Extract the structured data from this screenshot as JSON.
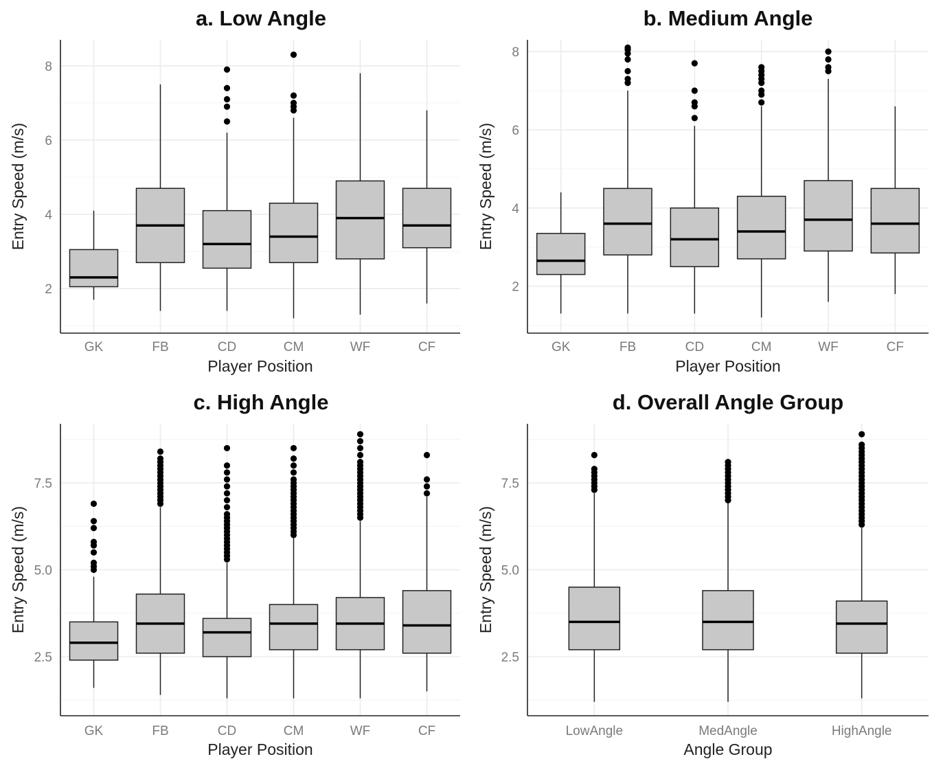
{
  "chart_data": [
    {
      "type": "boxplot",
      "title": "a. Low Angle",
      "xlabel": "Player Position",
      "ylabel": "Entry Speed (m/s)",
      "ylim": [
        0.8,
        8.7
      ],
      "yticks": [
        2,
        4,
        6,
        8
      ],
      "ytick_labels": [
        "2",
        "4",
        "6",
        "8"
      ],
      "categories": [
        "GK",
        "FB",
        "CD",
        "CM",
        "WF",
        "CF"
      ],
      "boxes": [
        {
          "min": 1.7,
          "q1": 2.05,
          "median": 2.3,
          "q3": 3.05,
          "max": 4.1,
          "outliers": []
        },
        {
          "min": 1.4,
          "q1": 2.7,
          "median": 3.7,
          "q3": 4.7,
          "max": 7.5,
          "outliers": []
        },
        {
          "min": 1.4,
          "q1": 2.55,
          "median": 3.2,
          "q3": 4.1,
          "max": 6.2,
          "outliers": [
            6.5,
            6.9,
            7.1,
            7.4,
            7.9
          ]
        },
        {
          "min": 1.2,
          "q1": 2.7,
          "median": 3.4,
          "q3": 4.3,
          "max": 6.6,
          "outliers": [
            6.8,
            6.9,
            7.0,
            7.2,
            8.3
          ]
        },
        {
          "min": 1.3,
          "q1": 2.8,
          "median": 3.9,
          "q3": 4.9,
          "max": 7.8,
          "outliers": []
        },
        {
          "min": 1.6,
          "q1": 3.1,
          "median": 3.7,
          "q3": 4.7,
          "max": 6.8,
          "outliers": []
        }
      ]
    },
    {
      "type": "boxplot",
      "title": "b. Medium Angle",
      "xlabel": "Player Position",
      "ylabel": "Entry Speed (m/s)",
      "ylim": [
        0.8,
        8.3
      ],
      "yticks": [
        2,
        4,
        6,
        8
      ],
      "ytick_labels": [
        "2",
        "4",
        "6",
        "8"
      ],
      "categories": [
        "GK",
        "FB",
        "CD",
        "CM",
        "WF",
        "CF"
      ],
      "boxes": [
        {
          "min": 1.3,
          "q1": 2.3,
          "median": 2.65,
          "q3": 3.35,
          "max": 4.4,
          "outliers": []
        },
        {
          "min": 1.3,
          "q1": 2.8,
          "median": 3.6,
          "q3": 4.5,
          "max": 7.0,
          "outliers": [
            7.2,
            7.3,
            7.5,
            7.8,
            7.95,
            8.05,
            8.1
          ]
        },
        {
          "min": 1.3,
          "q1": 2.5,
          "median": 3.2,
          "q3": 4.0,
          "max": 6.1,
          "outliers": [
            6.3,
            6.6,
            6.7,
            7.0,
            7.7
          ]
        },
        {
          "min": 1.2,
          "q1": 2.7,
          "median": 3.4,
          "q3": 4.3,
          "max": 6.6,
          "outliers": [
            6.7,
            6.9,
            7.0,
            7.2,
            7.3,
            7.4,
            7.5,
            7.6
          ]
        },
        {
          "min": 1.6,
          "q1": 2.9,
          "median": 3.7,
          "q3": 4.7,
          "max": 7.3,
          "outliers": [
            7.5,
            7.6,
            7.8,
            8.0
          ]
        },
        {
          "min": 1.8,
          "q1": 2.85,
          "median": 3.6,
          "q3": 4.5,
          "max": 6.6,
          "outliers": []
        }
      ]
    },
    {
      "type": "boxplot",
      "title": "c. High Angle",
      "xlabel": "Player Position",
      "ylabel": "Entry Speed (m/s)",
      "ylim": [
        0.8,
        9.2
      ],
      "yticks": [
        2.5,
        5.0,
        7.5
      ],
      "ytick_labels": [
        "2.5",
        "5.0",
        "7.5"
      ],
      "categories": [
        "GK",
        "FB",
        "CD",
        "CM",
        "WF",
        "CF"
      ],
      "boxes": [
        {
          "min": 1.6,
          "q1": 2.4,
          "median": 2.9,
          "q3": 3.5,
          "max": 4.8,
          "outliers": [
            5.0,
            5.1,
            5.2,
            5.5,
            5.7,
            5.8,
            6.2,
            6.4,
            6.9
          ]
        },
        {
          "min": 1.4,
          "q1": 2.6,
          "median": 3.45,
          "q3": 4.3,
          "max": 6.8,
          "outliers": [
            6.9,
            7.0,
            7.1,
            7.2,
            7.3,
            7.4,
            7.5,
            7.6,
            7.7,
            7.8,
            7.9,
            8.0,
            8.1,
            8.2,
            8.4
          ]
        },
        {
          "min": 1.3,
          "q1": 2.5,
          "median": 3.2,
          "q3": 3.6,
          "max": 5.2,
          "outliers": [
            5.3,
            5.4,
            5.5,
            5.6,
            5.7,
            5.8,
            5.9,
            6.0,
            6.1,
            6.2,
            6.3,
            6.4,
            6.5,
            6.6,
            6.8,
            7.0,
            7.2,
            7.4,
            7.6,
            7.8,
            8.0,
            8.5
          ]
        },
        {
          "min": 1.3,
          "q1": 2.7,
          "median": 3.45,
          "q3": 4.0,
          "max": 6.0,
          "outliers": [
            6.0,
            6.1,
            6.2,
            6.3,
            6.4,
            6.5,
            6.6,
            6.7,
            6.8,
            6.9,
            7.0,
            7.1,
            7.2,
            7.3,
            7.4,
            7.5,
            7.6,
            7.8,
            8.0,
            8.2,
            8.5
          ]
        },
        {
          "min": 1.3,
          "q1": 2.7,
          "median": 3.45,
          "q3": 4.2,
          "max": 6.4,
          "outliers": [
            6.5,
            6.6,
            6.7,
            6.8,
            6.9,
            7.0,
            7.1,
            7.2,
            7.3,
            7.4,
            7.5,
            7.6,
            7.7,
            7.8,
            7.9,
            8.0,
            8.1,
            8.3,
            8.5,
            8.7,
            8.9
          ]
        },
        {
          "min": 1.5,
          "q1": 2.6,
          "median": 3.4,
          "q3": 4.4,
          "max": 7.1,
          "outliers": [
            7.2,
            7.4,
            7.6,
            8.3
          ]
        }
      ]
    },
    {
      "type": "boxplot",
      "title": "d. Overall Angle Group",
      "xlabel": "Angle Group",
      "ylabel": "Entry Speed (m/s)",
      "ylim": [
        0.8,
        9.2
      ],
      "yticks": [
        2.5,
        5.0,
        7.5
      ],
      "ytick_labels": [
        "2.5",
        "5.0",
        "7.5"
      ],
      "categories": [
        "LowAngle",
        "MedAngle",
        "HighAngle"
      ],
      "boxes": [
        {
          "min": 1.2,
          "q1": 2.7,
          "median": 3.5,
          "q3": 4.5,
          "max": 7.2,
          "outliers": [
            7.3,
            7.4,
            7.5,
            7.6,
            7.7,
            7.8,
            7.9,
            8.3
          ]
        },
        {
          "min": 1.2,
          "q1": 2.7,
          "median": 3.5,
          "q3": 4.4,
          "max": 7.0,
          "outliers": [
            7.0,
            7.1,
            7.2,
            7.3,
            7.4,
            7.5,
            7.6,
            7.7,
            7.8,
            7.9,
            8.0,
            8.1
          ]
        },
        {
          "min": 1.3,
          "q1": 2.6,
          "median": 3.45,
          "q3": 4.1,
          "max": 6.2,
          "outliers": [
            6.3,
            6.4,
            6.5,
            6.6,
            6.7,
            6.8,
            6.9,
            7.0,
            7.1,
            7.2,
            7.3,
            7.4,
            7.5,
            7.6,
            7.7,
            7.8,
            7.9,
            8.0,
            8.1,
            8.2,
            8.3,
            8.4,
            8.5,
            8.6,
            8.9
          ]
        }
      ]
    }
  ]
}
